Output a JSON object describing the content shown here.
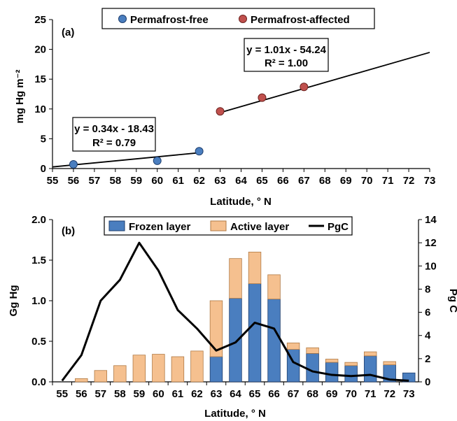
{
  "chart_data": [
    {
      "type": "scatter",
      "panel_label": "(a)",
      "xlabel": "Latitude, ° N",
      "ylabel": "mg Hg m⁻²",
      "xlim": [
        55,
        73
      ],
      "ylim": [
        0,
        25
      ],
      "xticks": [
        55,
        56,
        57,
        58,
        59,
        60,
        61,
        62,
        63,
        64,
        65,
        66,
        67,
        68,
        69,
        70,
        71,
        72,
        73
      ],
      "yticks": [
        0,
        5,
        10,
        15,
        20,
        25
      ],
      "legend_position": "top",
      "series": [
        {
          "name": "Permafrost-free",
          "color": "#4a7ebf",
          "points": [
            [
              56,
              0.7
            ],
            [
              60,
              1.3
            ],
            [
              62,
              2.9
            ]
          ],
          "trendline": {
            "slope": 0.34,
            "intercept": -18.43,
            "x_range": [
              55,
              62
            ]
          },
          "equation_text": "y = 0.34x - 18.43",
          "r2_text": "R² = 0.79"
        },
        {
          "name": "Permafrost-affected",
          "color": "#c0504d",
          "points": [
            [
              63,
              9.6
            ],
            [
              65,
              11.9
            ],
            [
              67,
              13.7
            ]
          ],
          "trendline": {
            "slope": 1.01,
            "intercept": -54.24,
            "x_range": [
              63,
              73
            ]
          },
          "equation_text": "y = 1.01x - 54.24",
          "r2_text": "R² = 1.00"
        }
      ]
    },
    {
      "type": "bar",
      "stacked": true,
      "panel_label": "(b)",
      "xlabel": "Latitude, ° N",
      "ylabel": "Gg Hg",
      "y2label": "Pg C",
      "ylim": [
        0,
        2.0
      ],
      "yticks": [
        "0.0",
        "0.5",
        "1.0",
        "1.5",
        "2.0"
      ],
      "y2lim": [
        0,
        14
      ],
      "y2ticks": [
        0,
        2,
        4,
        6,
        8,
        10,
        12,
        14
      ],
      "categories": [
        "55",
        "56",
        "57",
        "58",
        "59",
        "60",
        "61",
        "62",
        "63",
        "64",
        "65",
        "66",
        "67",
        "68",
        "69",
        "70",
        "71",
        "72",
        "73"
      ],
      "legend_position": "top",
      "series": [
        {
          "name": "Frozen layer",
          "color": "#4a7ebf",
          "axis": "left",
          "values": [
            0,
            0,
            0,
            0,
            0,
            0,
            0,
            0,
            0.31,
            1.03,
            1.21,
            1.02,
            0.4,
            0.35,
            0.24,
            0.2,
            0.32,
            0.21,
            0.11
          ]
        },
        {
          "name": "Active layer",
          "color": "#f5c08f",
          "axis": "left",
          "values": [
            0,
            0.04,
            0.14,
            0.2,
            0.33,
            0.34,
            0.31,
            0.38,
            0.69,
            0.49,
            0.39,
            0.3,
            0.08,
            0.07,
            0.04,
            0.04,
            0.05,
            0.04,
            0
          ]
        },
        {
          "name": "PgC",
          "type": "line",
          "color": "#000000",
          "axis": "right",
          "values": [
            0.1,
            2.3,
            7.0,
            8.8,
            12.0,
            9.6,
            6.2,
            4.6,
            2.7,
            3.4,
            5.1,
            4.6,
            1.7,
            0.9,
            0.6,
            0.5,
            0.6,
            0.2,
            0.1
          ]
        }
      ]
    }
  ]
}
